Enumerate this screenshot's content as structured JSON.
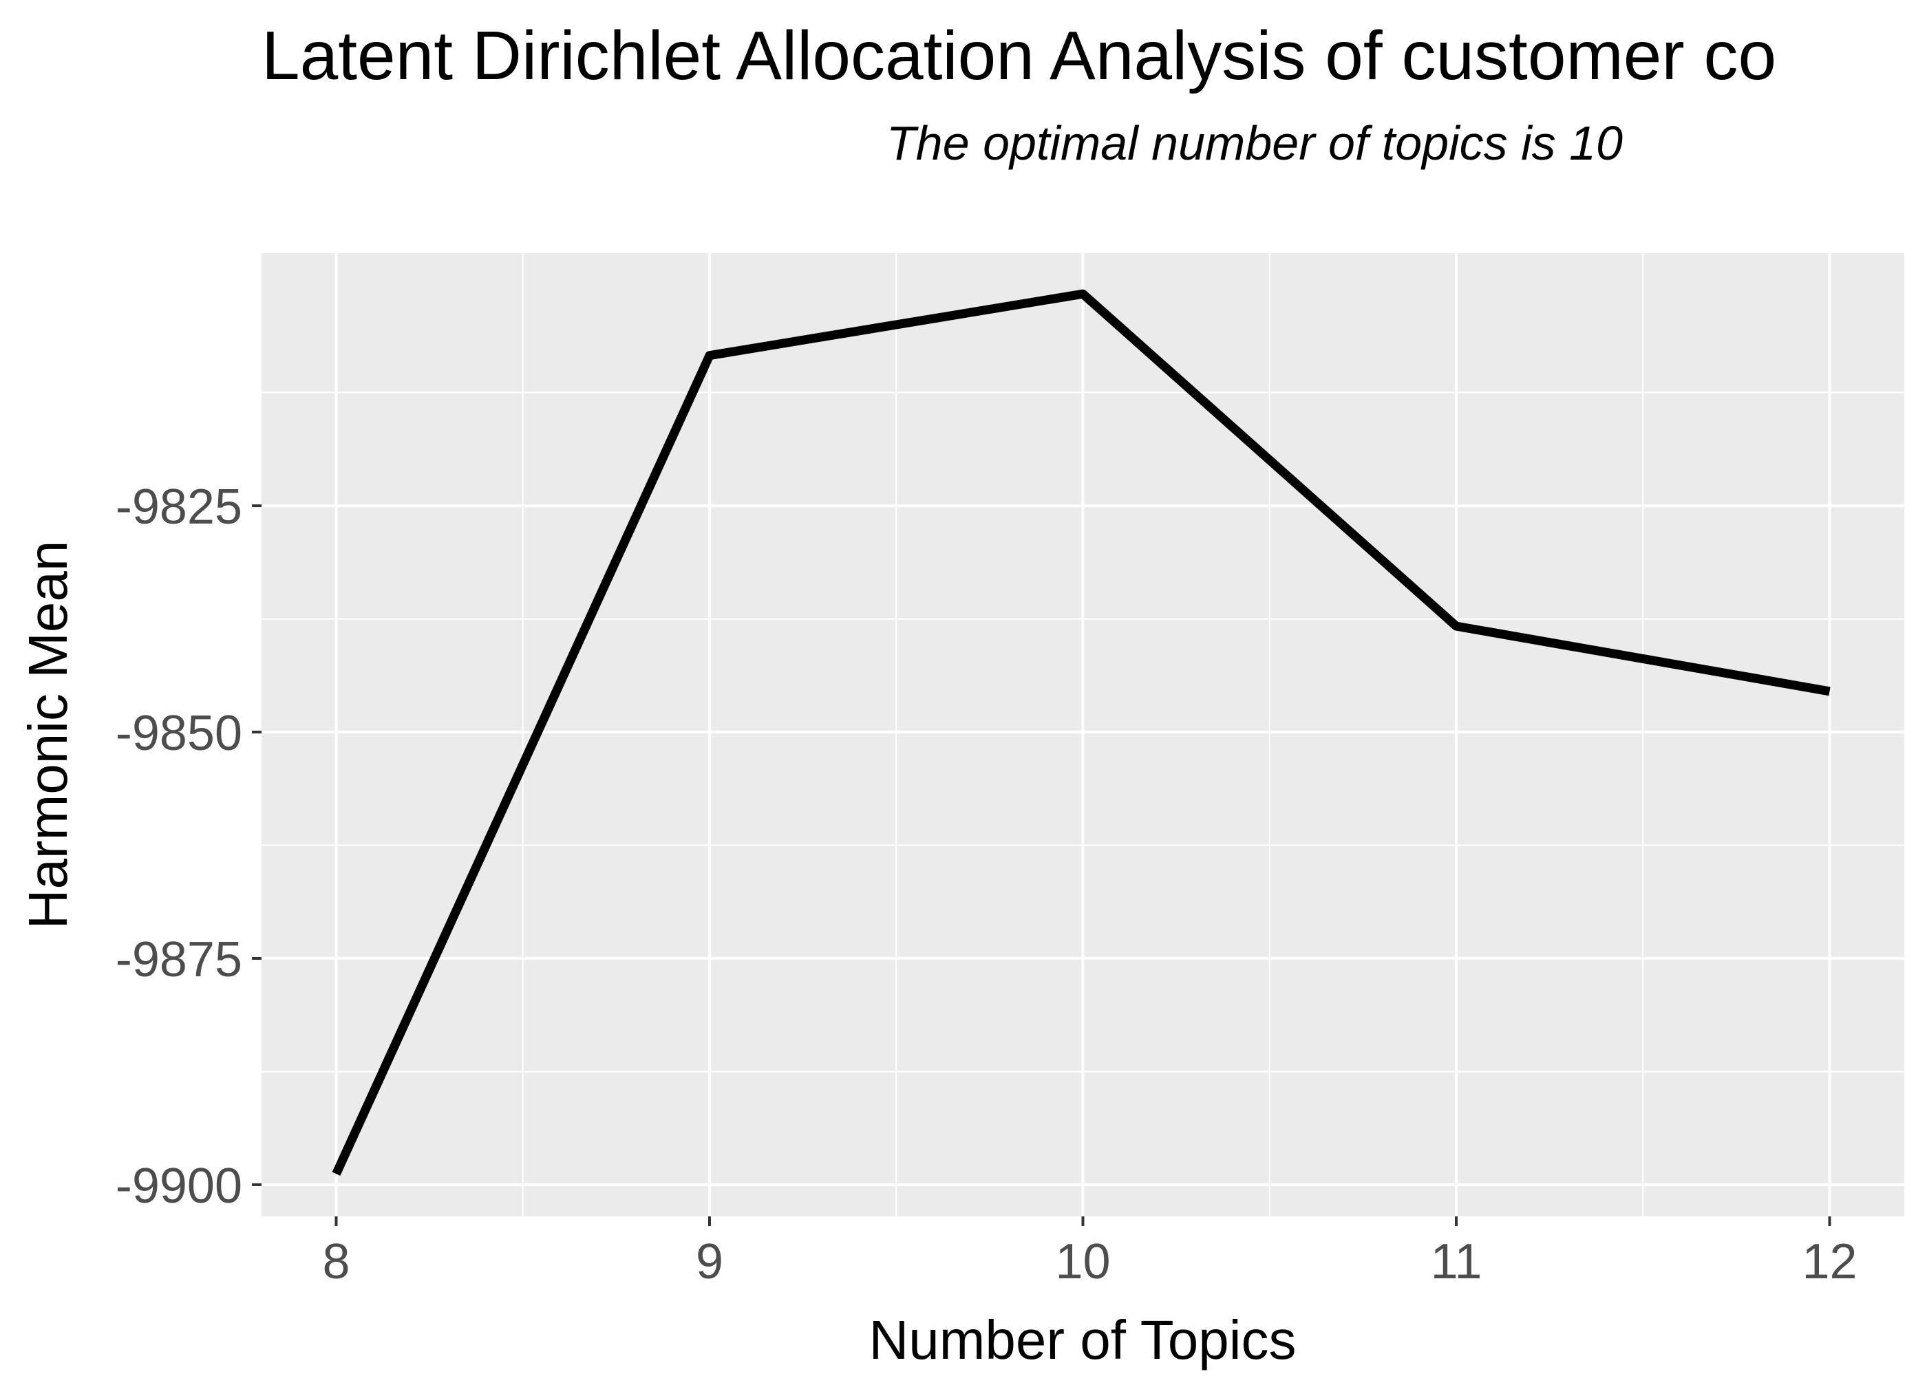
{
  "chart_data": {
    "type": "line",
    "title": "Latent Dirichlet Allocation Analysis of customer co",
    "subtitle": "The optimal number of topics is 10",
    "xlabel": "Number of Topics",
    "ylabel": "Harmonic Mean",
    "x": [
      8,
      9,
      10,
      11,
      12
    ],
    "series": [
      {
        "values": [
          -9898.8,
          -9808.4,
          -9801.6,
          -9838.3,
          -9845.5
        ]
      }
    ],
    "xlim": [
      7.8,
      12.2
    ],
    "ylim": [
      -9903.5,
      -9797.1
    ],
    "x_ticks": [
      8,
      9,
      10,
      11,
      12
    ],
    "x_tick_labels": [
      "8",
      "9",
      "10",
      "11",
      "12"
    ],
    "y_ticks": [
      -9825,
      -9850,
      -9875,
      -9900
    ],
    "y_tick_labels": [
      "-9825",
      "-9850",
      "-9875",
      "-9900"
    ],
    "grid": true,
    "legend": "none",
    "colors": {
      "panel_background": "#ebebeb",
      "grid": "#ffffff",
      "line": "#000000",
      "tick_text": "#4d4d4d"
    }
  }
}
